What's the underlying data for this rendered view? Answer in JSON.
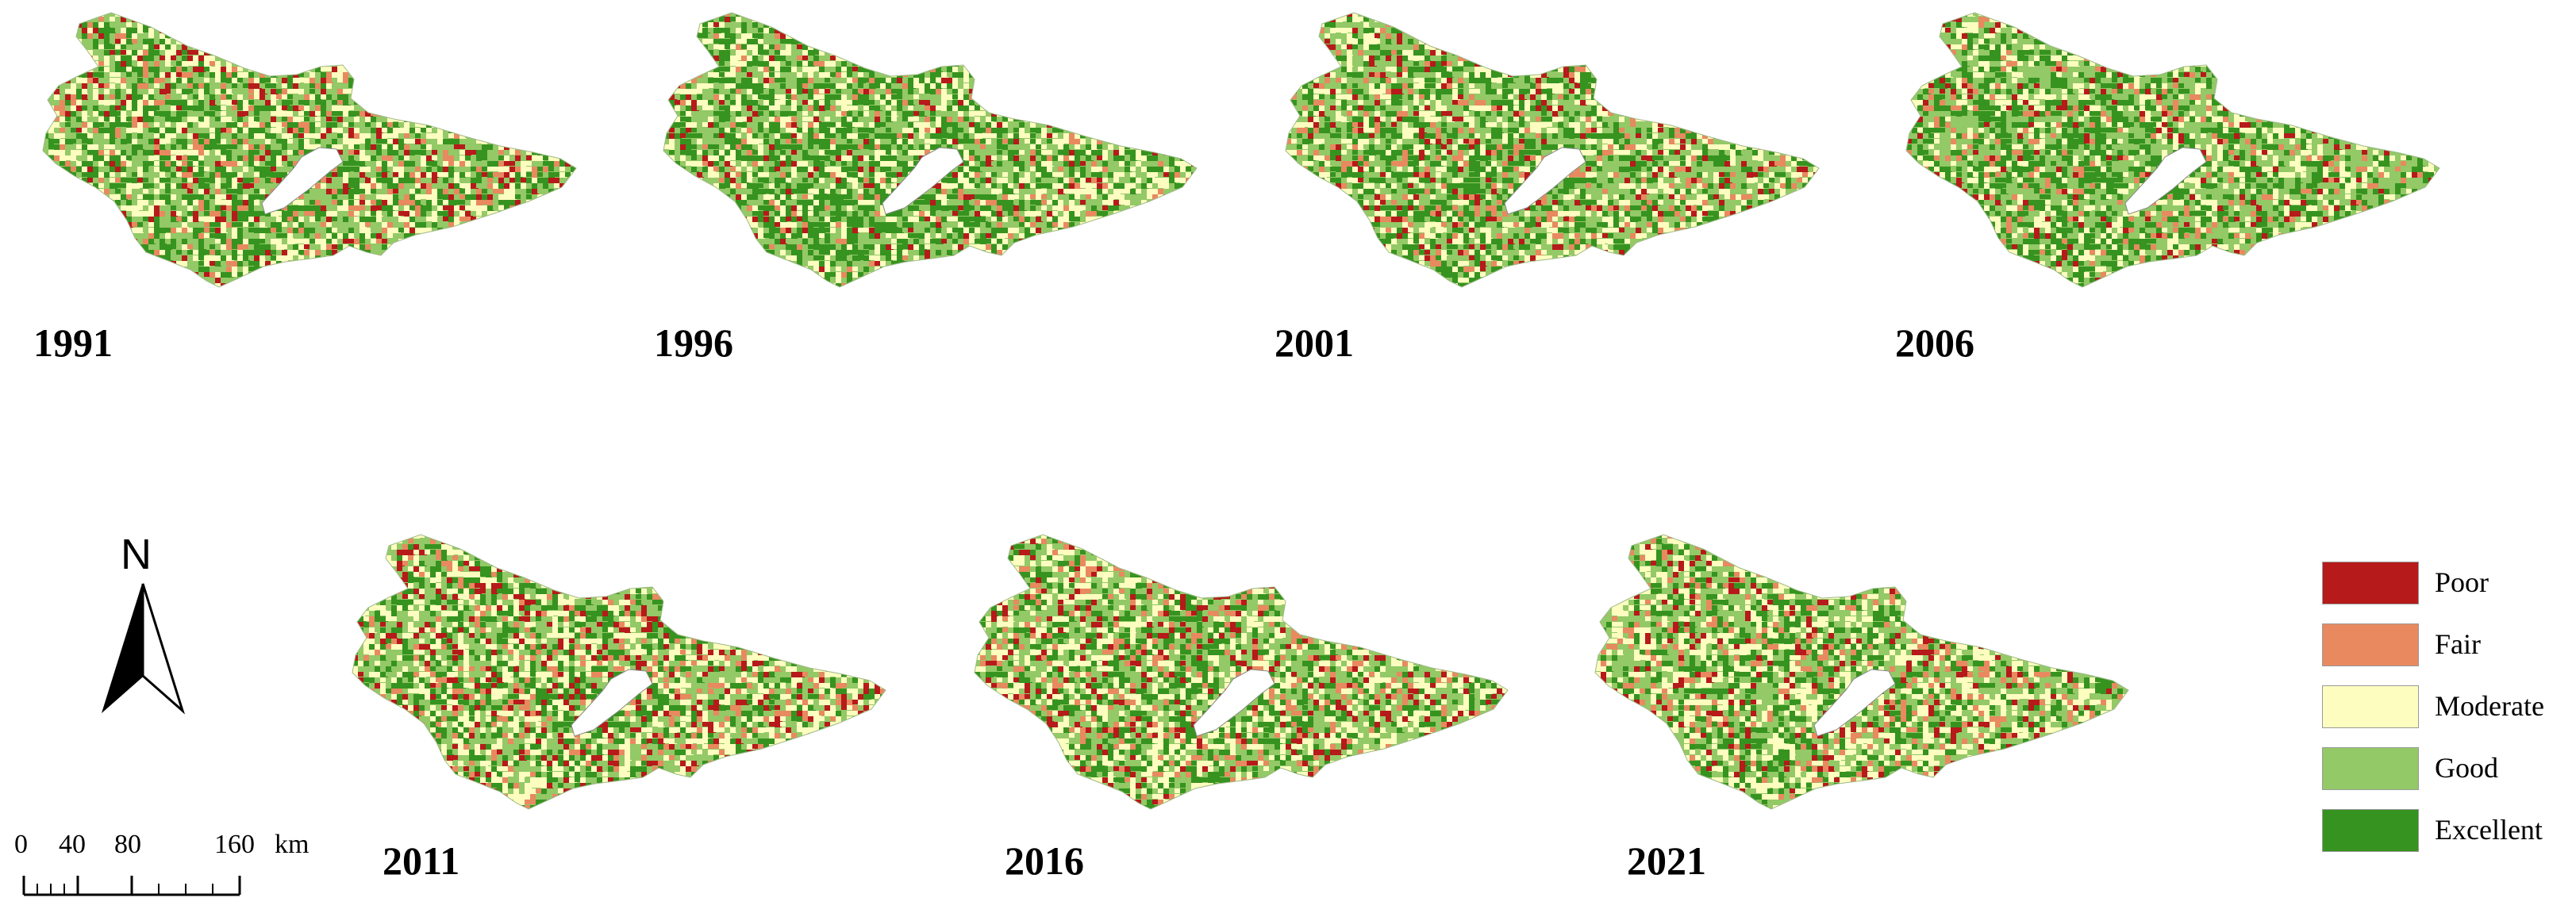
{
  "palette": {
    "poor": "#b61a1a",
    "fair": "#e8895f",
    "moderate": "#fdfdc0",
    "good": "#93c966",
    "excellent": "#36931f"
  },
  "panels": [
    {
      "year": "1991",
      "mix": {
        "poor": 0.1,
        "fair": 0.1,
        "moderate": 0.28,
        "good": 0.3,
        "excellent": 0.22
      }
    },
    {
      "year": "1996",
      "mix": {
        "poor": 0.06,
        "fair": 0.07,
        "moderate": 0.27,
        "good": 0.32,
        "excellent": 0.28
      }
    },
    {
      "year": "2001",
      "mix": {
        "poor": 0.09,
        "fair": 0.1,
        "moderate": 0.25,
        "good": 0.34,
        "excellent": 0.22
      }
    },
    {
      "year": "2006",
      "mix": {
        "poor": 0.07,
        "fair": 0.09,
        "moderate": 0.22,
        "good": 0.36,
        "excellent": 0.26
      }
    },
    {
      "year": "2011",
      "mix": {
        "poor": 0.13,
        "fair": 0.1,
        "moderate": 0.3,
        "good": 0.3,
        "excellent": 0.17
      }
    },
    {
      "year": "2016",
      "mix": {
        "poor": 0.11,
        "fair": 0.12,
        "moderate": 0.28,
        "good": 0.31,
        "excellent": 0.18
      }
    },
    {
      "year": "2021",
      "mix": {
        "poor": 0.09,
        "fair": 0.1,
        "moderate": 0.3,
        "good": 0.33,
        "excellent": 0.18
      }
    }
  ],
  "north_label": "N",
  "scalebar": {
    "ticks": [
      "0",
      "40",
      "80",
      "160"
    ],
    "unit": "km"
  },
  "legend": [
    {
      "key": "poor",
      "label": "Poor"
    },
    {
      "key": "fair",
      "label": "Fair"
    },
    {
      "key": "moderate",
      "label": "Moderate"
    },
    {
      "key": "good",
      "label": "Good"
    },
    {
      "key": "excellent",
      "label": "Excellent"
    }
  ]
}
